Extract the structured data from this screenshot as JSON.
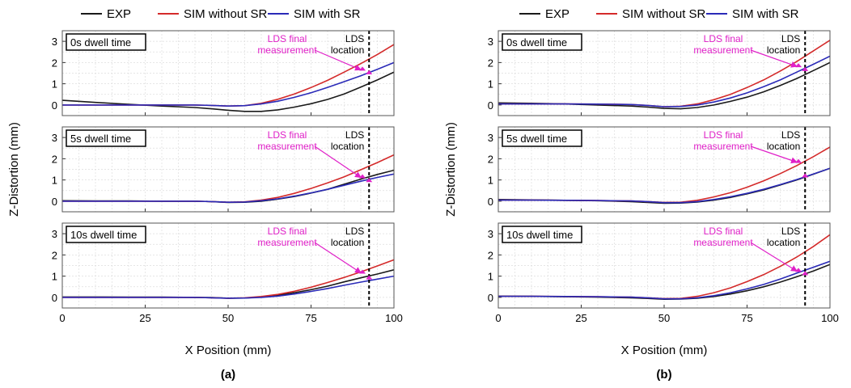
{
  "legend": {
    "entries": [
      {
        "name": "EXP",
        "color": "#1a1a1a"
      },
      {
        "name": "SIM without SR",
        "color": "#d42a2a"
      },
      {
        "name": "SIM with SR",
        "color": "#2a2ab8"
      }
    ]
  },
  "colors": {
    "annotation": "#e020c8",
    "lds_line": "#000000",
    "grid": "#dddddd",
    "panel_border": "#555555"
  },
  "chart_data": [
    {
      "type": "line",
      "figure_label": "(a)",
      "xlabel": "X Position (mm)",
      "ylabel": "Z-Distortion (mm)",
      "xlim": [
        0,
        100
      ],
      "ylim": [
        -0.5,
        3.5
      ],
      "xticks": [
        "0",
        "25",
        "50",
        "75",
        "100"
      ],
      "yticks": [
        "0",
        "1",
        "2",
        "3"
      ],
      "grid": true,
      "lds_location_x": 92.5,
      "panels": [
        {
          "title": "0s dwell time",
          "annotation_lds_final": "LDS final\nmeasurement",
          "annotation_lds_location": "LDS\nlocation",
          "series": [
            {
              "name": "EXP",
              "x": [
                0,
                10,
                20,
                30,
                40,
                45,
                50,
                55,
                60,
                65,
                70,
                75,
                80,
                85,
                90,
                95,
                100
              ],
              "y": [
                0.22,
                0.12,
                0.03,
                -0.05,
                -0.12,
                -0.18,
                -0.25,
                -0.3,
                -0.3,
                -0.23,
                -0.1,
                0.06,
                0.26,
                0.52,
                0.84,
                1.18,
                1.55
              ]
            },
            {
              "name": "SIM without SR",
              "x": [
                0,
                10,
                20,
                30,
                40,
                45,
                50,
                55,
                60,
                65,
                70,
                75,
                80,
                85,
                90,
                95,
                100
              ],
              "y": [
                0.0,
                0.0,
                0.0,
                0.0,
                0.0,
                -0.02,
                -0.05,
                -0.03,
                0.08,
                0.27,
                0.52,
                0.82,
                1.16,
                1.55,
                1.95,
                2.38,
                2.85
              ]
            },
            {
              "name": "SIM with SR",
              "x": [
                0,
                10,
                20,
                30,
                40,
                45,
                50,
                55,
                60,
                65,
                70,
                75,
                80,
                85,
                90,
                95,
                100
              ],
              "y": [
                0.0,
                0.0,
                0.0,
                0.0,
                0.0,
                -0.02,
                -0.05,
                -0.03,
                0.05,
                0.18,
                0.36,
                0.58,
                0.83,
                1.1,
                1.38,
                1.68,
                2.0
              ]
            }
          ],
          "markers": [
            {
              "x": 90.5,
              "y": 1.62
            },
            {
              "x": 92.5,
              "y": 1.45
            }
          ]
        },
        {
          "title": "5s dwell time",
          "annotation_lds_final": "LDS final\nmeasurement",
          "annotation_lds_location": "LDS\nlocation",
          "series": [
            {
              "name": "EXP",
              "x": [
                0,
                10,
                20,
                30,
                40,
                45,
                50,
                55,
                60,
                65,
                70,
                75,
                80,
                85,
                90,
                95,
                100
              ],
              "y": [
                0.02,
                0.01,
                0.01,
                0.0,
                0.0,
                -0.02,
                -0.06,
                -0.05,
                0.0,
                0.1,
                0.22,
                0.38,
                0.56,
                0.8,
                1.04,
                1.26,
                1.46
              ]
            },
            {
              "name": "SIM without SR",
              "x": [
                0,
                10,
                20,
                30,
                40,
                45,
                50,
                55,
                60,
                65,
                70,
                75,
                80,
                85,
                90,
                95,
                100
              ],
              "y": [
                0.0,
                0.0,
                0.0,
                0.0,
                0.0,
                -0.02,
                -0.05,
                -0.03,
                0.05,
                0.18,
                0.37,
                0.6,
                0.86,
                1.15,
                1.48,
                1.82,
                2.18
              ]
            },
            {
              "name": "SIM with SR",
              "x": [
                0,
                10,
                20,
                30,
                40,
                45,
                50,
                55,
                60,
                65,
                70,
                75,
                80,
                85,
                90,
                95,
                100
              ],
              "y": [
                0.0,
                0.0,
                0.0,
                0.0,
                0.0,
                -0.02,
                -0.05,
                -0.04,
                0.02,
                0.11,
                0.24,
                0.39,
                0.56,
                0.75,
                0.94,
                1.12,
                1.28
              ]
            }
          ],
          "markers": [
            {
              "x": 90.5,
              "y": 1.08
            },
            {
              "x": 92.5,
              "y": 0.9
            }
          ]
        },
        {
          "title": "10s dwell time",
          "annotation_lds_final": "LDS final\nmeasurement",
          "annotation_lds_location": "LDS\nlocation",
          "series": [
            {
              "name": "EXP",
              "x": [
                0,
                10,
                20,
                30,
                40,
                45,
                50,
                55,
                60,
                65,
                70,
                75,
                80,
                85,
                90,
                95,
                100
              ],
              "y": [
                0.02,
                0.02,
                0.01,
                0.01,
                0.0,
                -0.01,
                -0.04,
                -0.03,
                0.02,
                0.1,
                0.22,
                0.36,
                0.53,
                0.73,
                0.92,
                1.1,
                1.3
              ]
            },
            {
              "name": "SIM without SR",
              "x": [
                0,
                10,
                20,
                30,
                40,
                45,
                50,
                55,
                60,
                65,
                70,
                75,
                80,
                85,
                90,
                95,
                100
              ],
              "y": [
                0.0,
                0.0,
                0.0,
                0.0,
                0.0,
                -0.02,
                -0.04,
                -0.02,
                0.04,
                0.14,
                0.29,
                0.48,
                0.7,
                0.94,
                1.2,
                1.48,
                1.77
              ]
            },
            {
              "name": "SIM with SR",
              "x": [
                0,
                10,
                20,
                30,
                40,
                45,
                50,
                55,
                60,
                65,
                70,
                75,
                80,
                85,
                90,
                95,
                100
              ],
              "y": [
                0.0,
                0.0,
                0.0,
                0.0,
                0.0,
                -0.02,
                -0.04,
                -0.03,
                0.0,
                0.06,
                0.16,
                0.28,
                0.42,
                0.57,
                0.72,
                0.86,
                1.0
              ]
            }
          ],
          "markers": [
            {
              "x": 90.5,
              "y": 1.12
            },
            {
              "x": 92.5,
              "y": 0.85
            }
          ]
        }
      ]
    },
    {
      "type": "line",
      "figure_label": "(b)",
      "xlabel": "X Position (mm)",
      "ylabel": "Z-Distortion (mm)",
      "xlim": [
        0,
        100
      ],
      "ylim": [
        -0.5,
        3.5
      ],
      "xticks": [
        "0",
        "25",
        "50",
        "75",
        "100"
      ],
      "yticks": [
        "0",
        "1",
        "2",
        "3"
      ],
      "grid": true,
      "lds_location_x": 92.5,
      "panels": [
        {
          "title": "0s dwell time",
          "annotation_lds_final": "LDS final\nmeasurement",
          "annotation_lds_location": "LDS\nlocation",
          "series": [
            {
              "name": "EXP",
              "x": [
                0,
                10,
                20,
                30,
                40,
                45,
                50,
                55,
                60,
                65,
                70,
                75,
                80,
                85,
                90,
                95,
                100
              ],
              "y": [
                0.1,
                0.08,
                0.05,
                0.0,
                -0.05,
                -0.1,
                -0.16,
                -0.18,
                -0.12,
                0.0,
                0.17,
                0.37,
                0.62,
                0.92,
                1.25,
                1.62,
                2.0
              ]
            },
            {
              "name": "SIM without SR",
              "x": [
                0,
                10,
                20,
                30,
                40,
                45,
                50,
                55,
                60,
                65,
                70,
                75,
                80,
                85,
                90,
                95,
                100
              ],
              "y": [
                0.05,
                0.05,
                0.05,
                0.04,
                0.02,
                -0.02,
                -0.08,
                -0.06,
                0.05,
                0.25,
                0.5,
                0.82,
                1.18,
                1.6,
                2.05,
                2.55,
                3.05
              ]
            },
            {
              "name": "SIM with SR",
              "x": [
                0,
                10,
                20,
                30,
                40,
                45,
                50,
                55,
                60,
                65,
                70,
                75,
                80,
                85,
                90,
                95,
                100
              ],
              "y": [
                0.05,
                0.05,
                0.05,
                0.04,
                0.02,
                -0.02,
                -0.08,
                -0.07,
                0.0,
                0.14,
                0.33,
                0.57,
                0.86,
                1.18,
                1.55,
                1.92,
                2.3
              ]
            }
          ],
          "markers": [
            {
              "x": 90.5,
              "y": 1.78
            },
            {
              "x": 92.5,
              "y": 1.6
            }
          ]
        },
        {
          "title": "5s dwell time",
          "annotation_lds_final": "LDS final\nmeasurement",
          "annotation_lds_location": "LDS\nlocation",
          "series": [
            {
              "name": "EXP",
              "x": [
                0,
                10,
                20,
                30,
                40,
                45,
                50,
                55,
                60,
                65,
                70,
                75,
                80,
                85,
                90,
                95,
                100
              ],
              "y": [
                0.08,
                0.06,
                0.04,
                0.02,
                -0.02,
                -0.06,
                -0.1,
                -0.09,
                -0.04,
                0.05,
                0.18,
                0.34,
                0.53,
                0.76,
                1.0,
                1.27,
                1.55
              ]
            },
            {
              "name": "SIM without SR",
              "x": [
                0,
                10,
                20,
                30,
                40,
                45,
                50,
                55,
                60,
                65,
                70,
                75,
                80,
                85,
                90,
                95,
                100
              ],
              "y": [
                0.05,
                0.05,
                0.04,
                0.03,
                0.01,
                -0.02,
                -0.06,
                -0.05,
                0.04,
                0.2,
                0.4,
                0.66,
                0.96,
                1.3,
                1.68,
                2.1,
                2.55
              ]
            },
            {
              "name": "SIM with SR",
              "x": [
                0,
                10,
                20,
                30,
                40,
                45,
                50,
                55,
                60,
                65,
                70,
                75,
                80,
                85,
                90,
                95,
                100
              ],
              "y": [
                0.05,
                0.05,
                0.04,
                0.03,
                0.01,
                -0.02,
                -0.07,
                -0.07,
                -0.02,
                0.08,
                0.21,
                0.37,
                0.56,
                0.78,
                1.02,
                1.28,
                1.55
              ]
            }
          ],
          "markers": [
            {
              "x": 90.5,
              "y": 1.8
            },
            {
              "x": 92.5,
              "y": 1.12
            }
          ]
        },
        {
          "title": "10s dwell time",
          "annotation_lds_final": "LDS final\nmeasurement",
          "annotation_lds_location": "LDS\nlocation",
          "series": [
            {
              "name": "EXP",
              "x": [
                0,
                10,
                20,
                30,
                40,
                45,
                50,
                55,
                60,
                65,
                70,
                75,
                80,
                85,
                90,
                95,
                100
              ],
              "y": [
                0.06,
                0.05,
                0.03,
                0.01,
                -0.02,
                -0.05,
                -0.09,
                -0.08,
                -0.04,
                0.04,
                0.16,
                0.31,
                0.5,
                0.72,
                0.97,
                1.24,
                1.55
              ]
            },
            {
              "name": "SIM without SR",
              "x": [
                0,
                10,
                20,
                30,
                40,
                45,
                50,
                55,
                60,
                65,
                70,
                75,
                80,
                85,
                90,
                95,
                100
              ],
              "y": [
                0.05,
                0.05,
                0.04,
                0.03,
                0.01,
                -0.02,
                -0.06,
                -0.05,
                0.05,
                0.22,
                0.45,
                0.74,
                1.07,
                1.46,
                1.9,
                2.4,
                2.95
              ]
            },
            {
              "name": "SIM with SR",
              "x": [
                0,
                10,
                20,
                30,
                40,
                45,
                50,
                55,
                60,
                65,
                70,
                75,
                80,
                85,
                90,
                95,
                100
              ],
              "y": [
                0.05,
                0.05,
                0.04,
                0.03,
                0.01,
                -0.02,
                -0.07,
                -0.07,
                -0.02,
                0.08,
                0.22,
                0.4,
                0.61,
                0.86,
                1.14,
                1.42,
                1.7
              ]
            }
          ],
          "markers": [
            {
              "x": 90.5,
              "y": 1.2
            },
            {
              "x": 92.5,
              "y": 1.05
            }
          ]
        }
      ]
    }
  ]
}
